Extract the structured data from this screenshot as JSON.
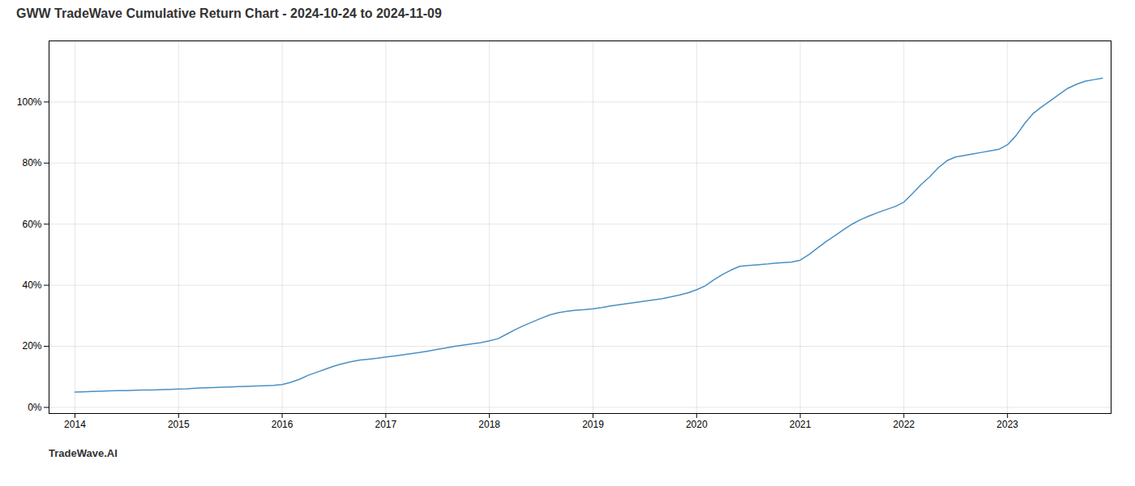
{
  "chart_data": {
    "type": "line",
    "title": "GWW TradeWave Cumulative Return Chart - 2024-10-24 to 2024-11-09",
    "annotations": [
      "TradeWave.AI"
    ],
    "color": "#4a90c4",
    "grid": true,
    "x": [
      2014.0,
      2014.083,
      2014.167,
      2014.25,
      2014.333,
      2014.417,
      2014.5,
      2014.583,
      2014.667,
      2014.75,
      2014.833,
      2014.917,
      2015.0,
      2015.083,
      2015.167,
      2015.25,
      2015.333,
      2015.417,
      2015.5,
      2015.583,
      2015.667,
      2015.75,
      2015.833,
      2015.917,
      2016.0,
      2016.083,
      2016.167,
      2016.25,
      2016.333,
      2016.417,
      2016.5,
      2016.583,
      2016.667,
      2016.75,
      2016.833,
      2016.917,
      2017.0,
      2017.083,
      2017.167,
      2017.25,
      2017.333,
      2017.417,
      2017.5,
      2017.583,
      2017.667,
      2017.75,
      2017.833,
      2017.917,
      2018.0,
      2018.083,
      2018.167,
      2018.25,
      2018.333,
      2018.417,
      2018.5,
      2018.583,
      2018.667,
      2018.75,
      2018.833,
      2018.917,
      2019.0,
      2019.083,
      2019.167,
      2019.25,
      2019.333,
      2019.417,
      2019.5,
      2019.583,
      2019.667,
      2019.75,
      2019.833,
      2019.917,
      2020.0,
      2020.083,
      2020.167,
      2020.25,
      2020.333,
      2020.417,
      2020.5,
      2020.583,
      2020.667,
      2020.75,
      2020.833,
      2020.917,
      2021.0,
      2021.083,
      2021.167,
      2021.25,
      2021.333,
      2021.417,
      2021.5,
      2021.583,
      2021.667,
      2021.75,
      2021.833,
      2021.917,
      2022.0,
      2022.083,
      2022.167,
      2022.25,
      2022.333,
      2022.417,
      2022.5,
      2022.583,
      2022.667,
      2022.75,
      2022.833,
      2022.917,
      2023.0,
      2023.083,
      2023.167,
      2023.25,
      2023.333,
      2023.417,
      2023.5,
      2023.583,
      2023.667,
      2023.75,
      2023.833,
      2023.917
    ],
    "values": [
      0.05,
      0.051,
      0.052,
      0.053,
      0.054,
      0.055,
      0.055,
      0.056,
      0.057,
      0.057,
      0.058,
      0.059,
      0.06,
      0.061,
      0.063,
      0.064,
      0.065,
      0.066,
      0.067,
      0.068,
      0.069,
      0.07,
      0.071,
      0.072,
      0.075,
      0.082,
      0.092,
      0.105,
      0.115,
      0.125,
      0.135,
      0.143,
      0.15,
      0.155,
      0.158,
      0.161,
      0.165,
      0.168,
      0.172,
      0.176,
      0.18,
      0.185,
      0.19,
      0.195,
      0.2,
      0.204,
      0.208,
      0.212,
      0.218,
      0.225,
      0.24,
      0.255,
      0.268,
      0.28,
      0.292,
      0.303,
      0.31,
      0.315,
      0.318,
      0.32,
      0.323,
      0.327,
      0.332,
      0.336,
      0.34,
      0.344,
      0.348,
      0.352,
      0.356,
      0.362,
      0.368,
      0.375,
      0.385,
      0.398,
      0.418,
      0.435,
      0.45,
      0.462,
      0.465,
      0.467,
      0.469,
      0.472,
      0.474,
      0.476,
      0.482,
      0.5,
      0.522,
      0.543,
      0.562,
      0.582,
      0.6,
      0.615,
      0.627,
      0.638,
      0.648,
      0.658,
      0.672,
      0.7,
      0.73,
      0.755,
      0.785,
      0.808,
      0.82,
      0.825,
      0.83,
      0.835,
      0.84,
      0.845,
      0.86,
      0.89,
      0.93,
      0.963,
      0.985,
      1.005,
      1.025,
      1.045,
      1.058,
      1.068,
      1.073,
      1.078
    ],
    "xlim": [
      2013.75,
      2024.0
    ],
    "xticks": [
      2014,
      2015,
      2016,
      2017,
      2018,
      2019,
      2020,
      2021,
      2022,
      2023
    ],
    "ylim": [
      -0.02,
      1.2
    ],
    "yticks": [
      {
        "value": 0.0,
        "label": "0%"
      },
      {
        "value": 0.2,
        "label": "20%"
      },
      {
        "value": 0.4,
        "label": "40%"
      },
      {
        "value": 0.6,
        "label": "60%"
      },
      {
        "value": 0.8,
        "label": "80%"
      },
      {
        "value": 1.0,
        "label": "100%"
      }
    ]
  }
}
